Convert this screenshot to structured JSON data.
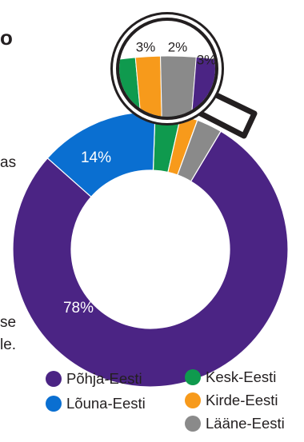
{
  "text_fragments": {
    "top": "o",
    "left": "as",
    "bottom_1": "se",
    "bottom_2": "le."
  },
  "chart_data": {
    "type": "donut",
    "series": [
      {
        "name": "Põhja-Eesti",
        "value": 78,
        "label": "78%",
        "color": "#4b2484"
      },
      {
        "name": "Lõuna-Eesti",
        "value": 14,
        "label": "14%",
        "color": "#0a6fd1"
      },
      {
        "name": "Kesk-Eesti",
        "value": 3,
        "label": "3%",
        "color": "#0f9a4e"
      },
      {
        "name": "Kirde-Eesti",
        "value": 2,
        "label": "2%",
        "color": "#f79a1b"
      },
      {
        "name": "Lääne-Eesti",
        "value": 3,
        "label": "3%",
        "color": "#8a8a8a"
      }
    ],
    "legend_position": "bottom-right",
    "magnifier": true
  }
}
